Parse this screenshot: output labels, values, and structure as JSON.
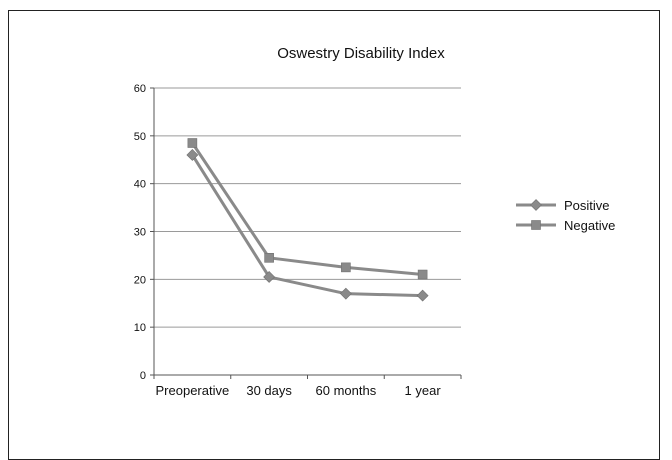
{
  "chart_data": {
    "type": "line",
    "title": "Oswestry Disability Index",
    "categories": [
      "Preoperative",
      "30 days",
      "60 months",
      "1 year"
    ],
    "ylim": [
      0,
      60
    ],
    "yticks": [
      0,
      10,
      20,
      30,
      40,
      50,
      60
    ],
    "grid": true,
    "legend_position": "right",
    "series": [
      {
        "name": "Positive",
        "values": [
          46,
          20.5,
          17,
          16.6
        ],
        "marker": "diamond",
        "color": "#8a8a8a"
      },
      {
        "name": "Negative",
        "values": [
          48.5,
          24.5,
          22.5,
          21
        ],
        "marker": "square",
        "color": "#8a8a8a"
      }
    ]
  }
}
